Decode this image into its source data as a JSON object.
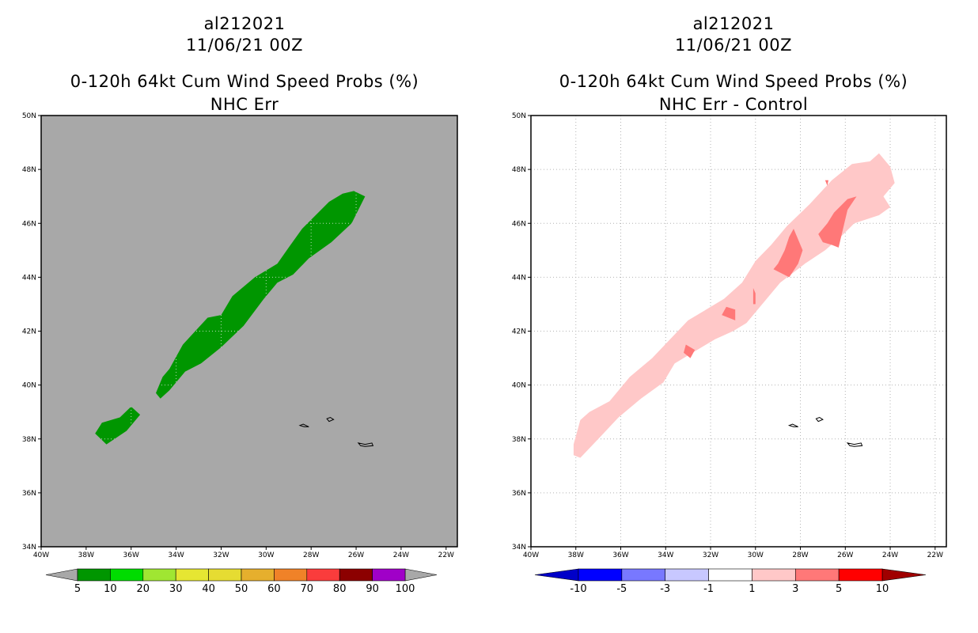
{
  "chart_data": [
    {
      "type": "map",
      "storm_id": "al212021",
      "datetime": "11/06/21 00Z",
      "title": "0-120h 64kt Cum Wind Speed Probs (%)",
      "subtitle": "NHC Err",
      "lon_range": [
        -40,
        -21.5
      ],
      "lat_range": [
        34,
        50
      ],
      "x_ticks": [
        "40W",
        "38W",
        "36W",
        "34W",
        "32W",
        "30W",
        "28W",
        "26W",
        "24W",
        "22W"
      ],
      "y_ticks": [
        "34N",
        "36N",
        "38N",
        "40N",
        "42N",
        "44N",
        "46N",
        "48N",
        "50N"
      ],
      "background": "#a8a8a8",
      "grid": false,
      "colorbar": {
        "colors": [
          "#009600",
          "#00dc00",
          "#a0e632",
          "#e6e632",
          "#e6dc32",
          "#e6af2d",
          "#f08228",
          "#fa3c3c",
          "#8c0000",
          "#a000c8"
        ],
        "labels": [
          "5",
          "10",
          "20",
          "30",
          "40",
          "50",
          "60",
          "70",
          "80",
          "90",
          "100"
        ]
      },
      "regions": [
        {
          "level": "5-10",
          "color": "#009600",
          "polygon": [
            [
              -37.6,
              38.2
            ],
            [
              -37.3,
              38.6
            ],
            [
              -36.5,
              38.8
            ],
            [
              -36.0,
              39.2
            ],
            [
              -35.6,
              38.9
            ],
            [
              -36.2,
              38.3
            ],
            [
              -37.1,
              37.8
            ]
          ]
        },
        {
          "level": "5-10",
          "color": "#009600",
          "polygon": [
            [
              -34.9,
              39.7
            ],
            [
              -34.6,
              40.3
            ],
            [
              -34.3,
              40.6
            ],
            [
              -33.7,
              41.5
            ],
            [
              -32.6,
              42.5
            ],
            [
              -32.0,
              42.6
            ],
            [
              -31.5,
              43.3
            ],
            [
              -30.5,
              44.0
            ],
            [
              -29.5,
              44.5
            ],
            [
              -29.0,
              45.1
            ],
            [
              -28.4,
              45.8
            ],
            [
              -27.2,
              46.8
            ],
            [
              -26.6,
              47.1
            ],
            [
              -26.1,
              47.2
            ],
            [
              -25.6,
              47.0
            ],
            [
              -26.2,
              46.0
            ],
            [
              -27.1,
              45.3
            ],
            [
              -28.1,
              44.7
            ],
            [
              -28.8,
              44.1
            ],
            [
              -29.5,
              43.8
            ],
            [
              -30.1,
              43.2
            ],
            [
              -31.0,
              42.2
            ],
            [
              -32.0,
              41.4
            ],
            [
              -32.9,
              40.8
            ],
            [
              -33.6,
              40.5
            ],
            [
              -34.3,
              39.8
            ],
            [
              -34.7,
              39.5
            ]
          ]
        }
      ]
    },
    {
      "type": "map",
      "storm_id": "al212021",
      "datetime": "11/06/21 00Z",
      "title": "0-120h 64kt Cum Wind Speed Probs (%)",
      "subtitle": "NHC Err - Control",
      "lon_range": [
        -40,
        -21.5
      ],
      "lat_range": [
        34,
        50
      ],
      "x_ticks": [
        "40W",
        "38W",
        "36W",
        "34W",
        "32W",
        "30W",
        "28W",
        "26W",
        "24W",
        "22W"
      ],
      "y_ticks": [
        "34N",
        "36N",
        "38N",
        "40N",
        "42N",
        "44N",
        "46N",
        "48N",
        "50N"
      ],
      "background": "#ffffff",
      "grid": true,
      "colorbar": {
        "colors": [
          "#0000c8",
          "#0000ff",
          "#7878ff",
          "#c8c8ff",
          "#ffffff",
          "#ffc8c8",
          "#ff7878",
          "#ff0000",
          "#a00000"
        ],
        "labels": [
          "-10",
          "-5",
          "-3",
          "-1",
          "1",
          "3",
          "5",
          "10"
        ]
      },
      "regions": [
        {
          "level": "1-3",
          "color": "#ffc8c8",
          "polygon": [
            [
              -38.1,
              37.8
            ],
            [
              -37.8,
              38.7
            ],
            [
              -37.4,
              39.0
            ],
            [
              -36.5,
              39.4
            ],
            [
              -35.6,
              40.3
            ],
            [
              -34.6,
              41.0
            ],
            [
              -33.8,
              41.7
            ],
            [
              -33.0,
              42.4
            ],
            [
              -32.2,
              42.8
            ],
            [
              -31.4,
              43.2
            ],
            [
              -30.6,
              43.8
            ],
            [
              -30.0,
              44.6
            ],
            [
              -29.3,
              45.2
            ],
            [
              -28.6,
              45.9
            ],
            [
              -27.6,
              46.7
            ],
            [
              -26.6,
              47.6
            ],
            [
              -25.7,
              48.2
            ],
            [
              -24.9,
              48.3
            ],
            [
              -24.5,
              48.6
            ],
            [
              -24.0,
              48.1
            ],
            [
              -23.8,
              47.5
            ],
            [
              -24.3,
              47.0
            ],
            [
              -24.0,
              46.6
            ],
            [
              -24.5,
              46.3
            ],
            [
              -25.6,
              46.0
            ],
            [
              -26.2,
              45.5
            ],
            [
              -26.9,
              45.0
            ],
            [
              -27.8,
              44.5
            ],
            [
              -28.9,
              43.8
            ],
            [
              -29.8,
              42.9
            ],
            [
              -30.4,
              42.3
            ],
            [
              -31.0,
              42.0
            ],
            [
              -31.8,
              41.7
            ],
            [
              -32.4,
              41.4
            ],
            [
              -33.6,
              40.8
            ],
            [
              -34.1,
              40.1
            ],
            [
              -35.1,
              39.5
            ],
            [
              -36.1,
              38.8
            ],
            [
              -37.0,
              38.0
            ],
            [
              -37.8,
              37.3
            ],
            [
              -38.1,
              37.4
            ]
          ]
        },
        {
          "level": "3-5",
          "color": "#ff7878",
          "polygon": [
            [
              -26.3,
              45.1
            ],
            [
              -25.9,
              46.5
            ],
            [
              -25.5,
              47.0
            ],
            [
              -25.9,
              46.9
            ],
            [
              -26.5,
              46.4
            ],
            [
              -26.8,
              46.0
            ],
            [
              -27.2,
              45.6
            ],
            [
              -27.0,
              45.3
            ],
            [
              -26.6,
              45.2
            ]
          ]
        },
        {
          "level": "3-5",
          "color": "#ff7878",
          "polygon": [
            [
              -28.3,
              45.8
            ],
            [
              -28.5,
              45.5
            ],
            [
              -28.7,
              45.0
            ],
            [
              -29.0,
              44.5
            ],
            [
              -29.2,
              44.3
            ],
            [
              -28.5,
              44.0
            ],
            [
              -28.1,
              44.5
            ],
            [
              -27.9,
              45.0
            ]
          ]
        },
        {
          "level": "3-5",
          "color": "#ff7878",
          "polygon": [
            [
              -31.5,
              42.6
            ],
            [
              -30.9,
              42.4
            ],
            [
              -30.9,
              42.8
            ],
            [
              -31.3,
              42.9
            ]
          ]
        },
        {
          "level": "3-5",
          "color": "#ff7878",
          "polygon": [
            [
              -33.1,
              41.5
            ],
            [
              -32.7,
              41.3
            ],
            [
              -32.9,
              41.0
            ],
            [
              -33.2,
              41.2
            ]
          ]
        },
        {
          "level": "3-5",
          "color": "#ff7878",
          "polygon": [
            [
              -30.1,
              43.0
            ],
            [
              -30.1,
              43.6
            ],
            [
              -30.0,
              43.4
            ],
            [
              -30.0,
              43.0
            ]
          ]
        },
        {
          "level": "3-5",
          "color": "#ff7878",
          "polygon": [
            [
              -26.8,
              47.4
            ],
            [
              -26.9,
              47.6
            ],
            [
              -26.75,
              47.6
            ]
          ]
        }
      ]
    }
  ],
  "islands": [
    [
      [
        -28.5,
        38.5
      ],
      [
        -28.35,
        38.55
      ],
      [
        -28.1,
        38.45
      ],
      [
        -28.3,
        38.45
      ]
    ],
    [
      [
        -27.3,
        38.75
      ],
      [
        -27.15,
        38.8
      ],
      [
        -27.0,
        38.72
      ],
      [
        -27.2,
        38.65
      ]
    ],
    [
      [
        -25.9,
        37.85
      ],
      [
        -25.6,
        37.8
      ],
      [
        -25.3,
        37.85
      ],
      [
        -25.25,
        37.75
      ],
      [
        -25.6,
        37.72
      ],
      [
        -25.8,
        37.75
      ]
    ]
  ]
}
